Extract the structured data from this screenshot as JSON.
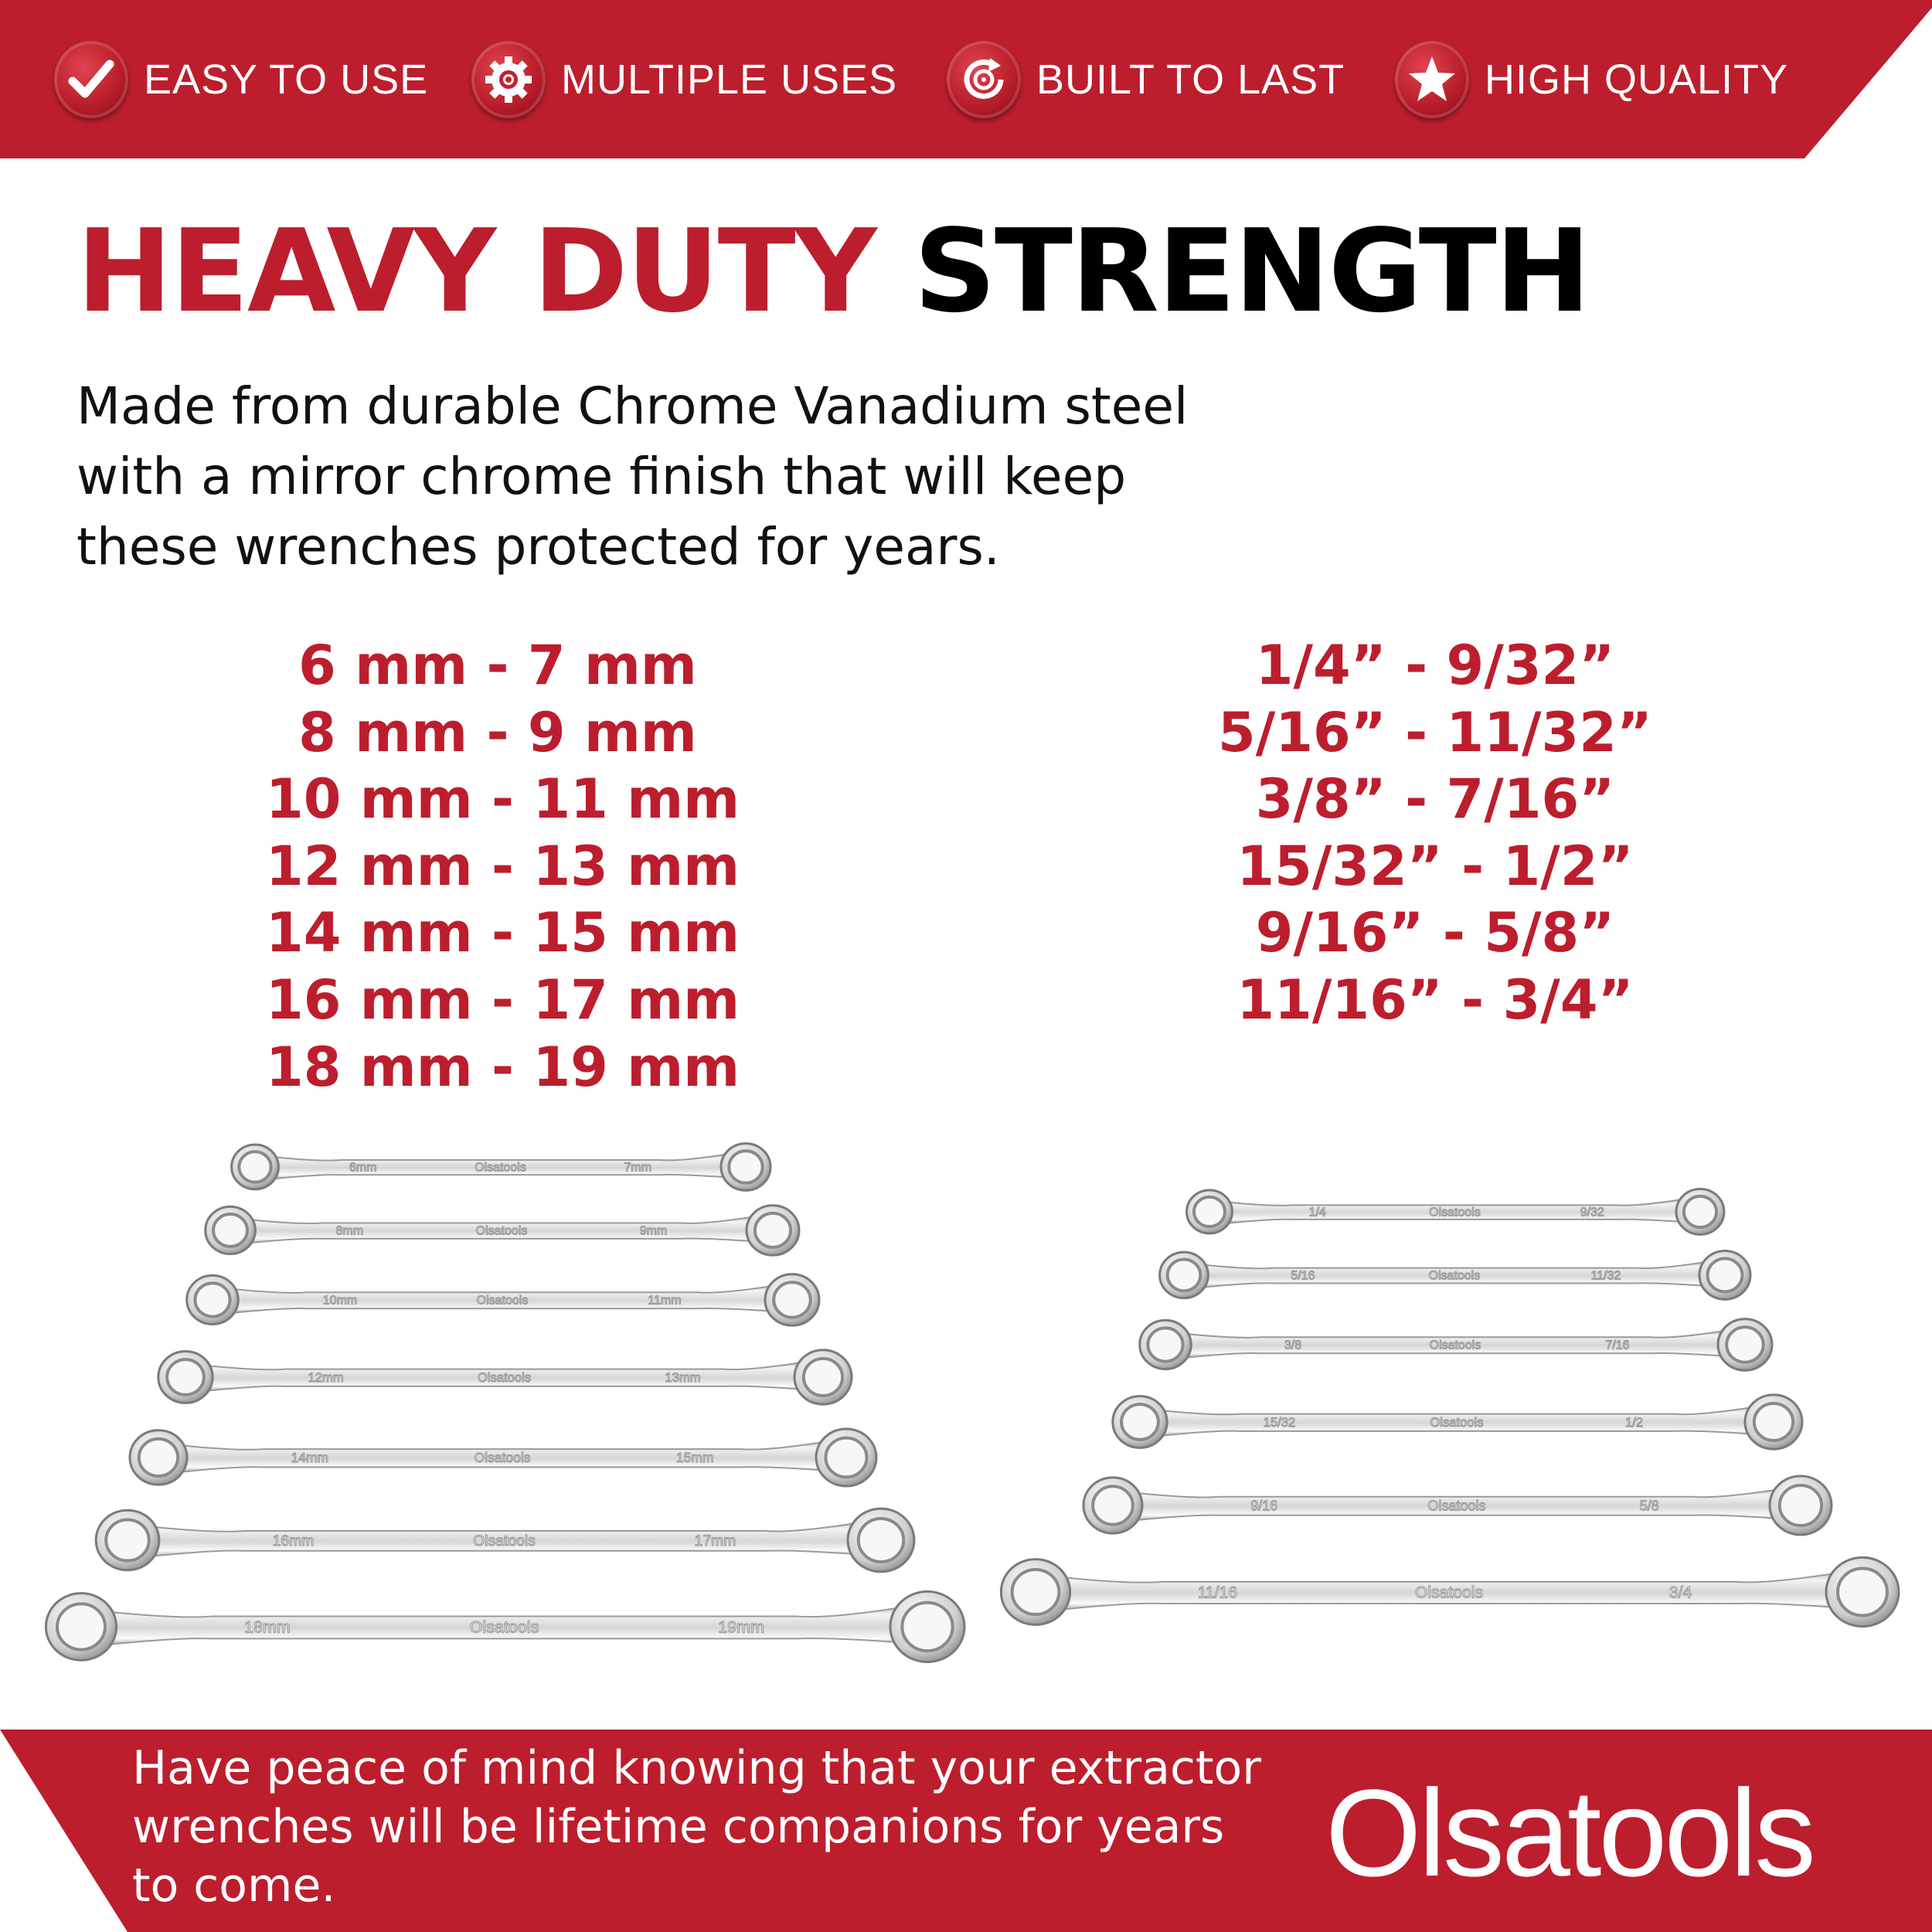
{
  "colors": {
    "brand_red": "#BC1E2D",
    "text_dark": "#111111",
    "white": "#FFFFFF"
  },
  "features": [
    {
      "icon": "check-icon",
      "label": "EASY TO USE"
    },
    {
      "icon": "gear-icon",
      "label": "MULTIPLE USES"
    },
    {
      "icon": "cycle-gear-icon",
      "label": "BUILT TO LAST"
    },
    {
      "icon": "star-icon",
      "label": "HIGH QUALITY"
    }
  ],
  "headline": {
    "red": "HEAVY DUTY",
    "black": "STRENGTH"
  },
  "description": [
    "Made from durable Chrome Vanadium steel",
    "with a mirror chrome finish that will keep",
    "these wrenches protected for years."
  ],
  "metric_sizes": [
    "6 mm - 7 mm",
    "8 mm - 9 mm",
    "10 mm - 11 mm",
    "12 mm - 13 mm",
    "14 mm - 15 mm",
    "16 mm - 17 mm",
    "18 mm - 19 mm"
  ],
  "imperial_sizes": [
    "1/4” - 9/32”",
    "5/16” - 11/32”",
    "3/8” - 7/16”",
    "15/32” - 1/2”",
    "9/16” - 5/8”",
    "11/16” - 3/4”"
  ],
  "wrench_markings": {
    "brand": "Olsatools",
    "metric": [
      [
        "6mm",
        "7mm"
      ],
      [
        "8mm",
        "9mm"
      ],
      [
        "10mm",
        "11mm"
      ],
      [
        "12mm",
        "13mm"
      ],
      [
        "14mm",
        "15mm"
      ],
      [
        "16mm",
        "17mm"
      ],
      [
        "18mm",
        "19mm"
      ]
    ],
    "imperial": [
      [
        "1/4",
        "9/32"
      ],
      [
        "5/16",
        "11/32"
      ],
      [
        "3/8",
        "7/16"
      ],
      [
        "15/32",
        "1/2"
      ],
      [
        "9/16",
        "5/8"
      ],
      [
        "11/16",
        "3/4"
      ]
    ]
  },
  "footer": {
    "lines": [
      "Have peace of mind knowing that your extractor",
      "wrenches will be lifetime companions for years",
      "to come."
    ]
  },
  "logo": {
    "text": "Olsatools"
  }
}
